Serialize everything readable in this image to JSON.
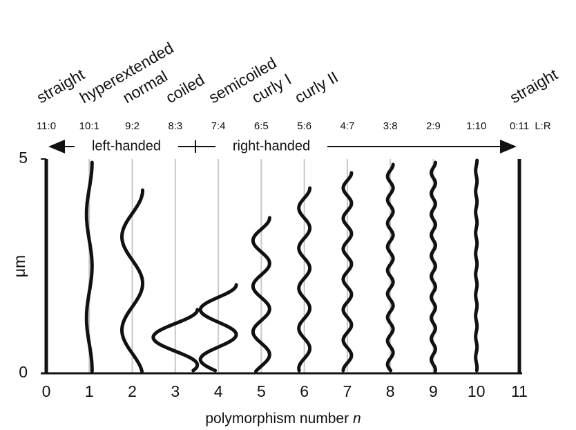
{
  "forms": [
    "straight",
    "hyperextended",
    "normal",
    "coiled",
    "semicoiled",
    "curly I",
    "curly II",
    null,
    null,
    null,
    null,
    "straight"
  ],
  "ratios": [
    "11:0",
    "10:1",
    "9:2",
    "8:3",
    "7:4",
    "6:5",
    "5:6",
    "4:7",
    "3:8",
    "2:9",
    "1:10",
    "0:11"
  ],
  "ratio_label": "L:R",
  "handedness": {
    "left": "left-handed",
    "right": "right-handed"
  },
  "x_axis": {
    "title": "polymorphism number",
    "variable": "n",
    "xlim": [
      0,
      11
    ],
    "xticks": [
      0,
      1,
      2,
      3,
      4,
      5,
      6,
      7,
      8,
      9,
      10,
      11
    ]
  },
  "y_axis": {
    "title": "μm",
    "ylim": [
      0,
      5
    ],
    "yticks": [
      0,
      5
    ]
  }
}
